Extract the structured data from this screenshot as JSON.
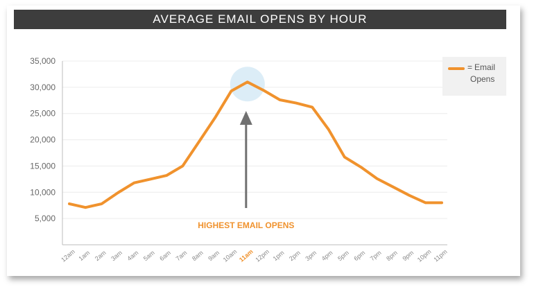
{
  "colors": {
    "line": "#f0922d",
    "highlight": "#f0922d",
    "arrow": "#707070",
    "title_bg": "#3d3d3d",
    "circle": "#d6eaf6"
  },
  "chart_data": {
    "type": "line",
    "title": "AVERAGE EMAIL OPENS BY HOUR",
    "xlabel": "",
    "ylabel": "",
    "categories": [
      "12am",
      "1am",
      "2am",
      "3am",
      "4am",
      "5am",
      "6am",
      "7am",
      "8am",
      "9am",
      "10am",
      "11am",
      "12pm",
      "1pm",
      "2pm",
      "3pm",
      "4pm",
      "5pm",
      "6pm",
      "7pm",
      "8pm",
      "9pm",
      "10pm",
      "11pm"
    ],
    "highlight_category": "11am",
    "yticks": [
      5000,
      10000,
      15000,
      20000,
      25000,
      30000,
      35000
    ],
    "ytick_labels": [
      "5,000",
      "10,000",
      "15,000",
      "20,000",
      "25,000",
      "30,000",
      "35,000"
    ],
    "ylim": [
      0,
      35000
    ],
    "series": [
      {
        "name": "Email Opens",
        "values": [
          7800,
          7100,
          7800,
          9900,
          11800,
          12500,
          13200,
          15000,
          19600,
          24200,
          29300,
          31000,
          29400,
          27600,
          27000,
          26200,
          22000,
          16700,
          14800,
          12600,
          11000,
          9400,
          8000,
          8000
        ]
      }
    ],
    "annotation": "HIGHEST EMAIL OPENS",
    "legend": {
      "equals": "=",
      "line1": "Email",
      "line2": "Opens",
      "position": "right"
    }
  }
}
